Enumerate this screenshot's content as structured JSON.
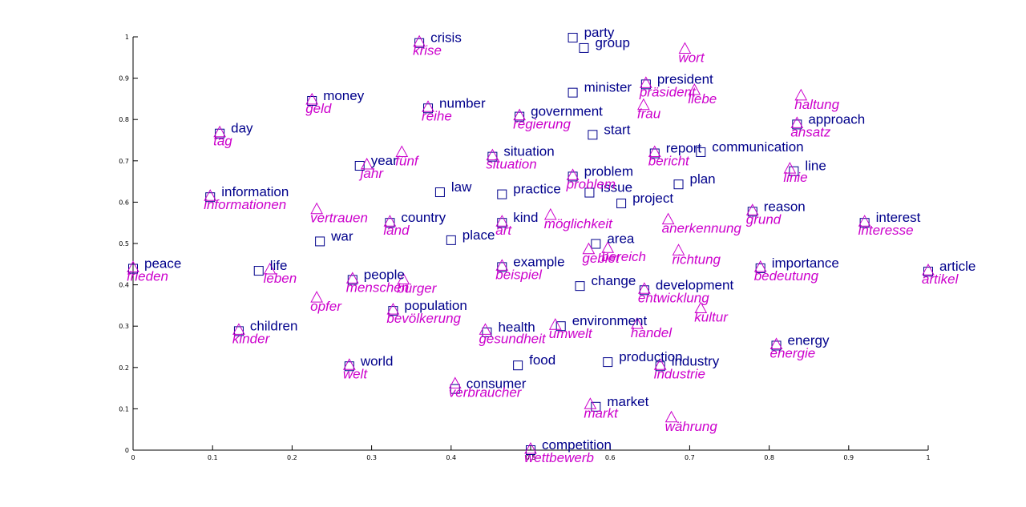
{
  "chart_data": {
    "type": "scatter",
    "xlim": [
      0,
      1
    ],
    "ylim": [
      0,
      1
    ],
    "x_ticks": [
      "0",
      "0.1",
      "0.2",
      "0.3",
      "0.4",
      "0.5",
      "0.6",
      "0.7",
      "0.8",
      "0.9",
      "1"
    ],
    "y_ticks": [
      "0",
      "0.1",
      "0.2",
      "0.3",
      "0.4",
      "0.5",
      "0.6",
      "0.7",
      "0.8",
      "0.9",
      "1"
    ],
    "grid": false,
    "colors": {
      "english": "#00008b",
      "german": "#cc00cc",
      "axis": "#000000"
    },
    "series": [
      {
        "marker": "square",
        "points": [
          {
            "label": "party",
            "x": 0.553,
            "y": 0.998
          },
          {
            "label": "group",
            "x": 0.567,
            "y": 0.973
          },
          {
            "label": "crisis",
            "x": 0.36,
            "y": 0.985
          },
          {
            "label": "minister",
            "x": 0.553,
            "y": 0.865
          },
          {
            "label": "president",
            "x": 0.645,
            "y": 0.885
          },
          {
            "label": "money",
            "x": 0.225,
            "y": 0.845
          },
          {
            "label": "number",
            "x": 0.371,
            "y": 0.827
          },
          {
            "label": "government",
            "x": 0.486,
            "y": 0.807
          },
          {
            "label": "approach",
            "x": 0.835,
            "y": 0.788
          },
          {
            "label": "start",
            "x": 0.578,
            "y": 0.763
          },
          {
            "label": "day",
            "x": 0.109,
            "y": 0.766
          },
          {
            "label": "report",
            "x": 0.656,
            "y": 0.718
          },
          {
            "label": "communication",
            "x": 0.714,
            "y": 0.721
          },
          {
            "label": "situation",
            "x": 0.452,
            "y": 0.71
          },
          {
            "label": "year",
            "x": 0.285,
            "y": 0.688
          },
          {
            "label": "line",
            "x": 0.831,
            "y": 0.675
          },
          {
            "label": "problem",
            "x": 0.553,
            "y": 0.662
          },
          {
            "label": "plan",
            "x": 0.686,
            "y": 0.643
          },
          {
            "label": "issue",
            "x": 0.574,
            "y": 0.623
          },
          {
            "label": "law",
            "x": 0.386,
            "y": 0.624
          },
          {
            "label": "practice",
            "x": 0.464,
            "y": 0.619
          },
          {
            "label": "information",
            "x": 0.097,
            "y": 0.612
          },
          {
            "label": "project",
            "x": 0.614,
            "y": 0.597
          },
          {
            "label": "reason",
            "x": 0.779,
            "y": 0.577
          },
          {
            "label": "country",
            "x": 0.323,
            "y": 0.55
          },
          {
            "label": "kind",
            "x": 0.464,
            "y": 0.55
          },
          {
            "label": "interest",
            "x": 0.92,
            "y": 0.55
          },
          {
            "label": "place",
            "x": 0.4,
            "y": 0.508
          },
          {
            "label": "war",
            "x": 0.235,
            "y": 0.505
          },
          {
            "label": "area",
            "x": 0.582,
            "y": 0.499
          },
          {
            "label": "example",
            "x": 0.464,
            "y": 0.443
          },
          {
            "label": "importance",
            "x": 0.789,
            "y": 0.44
          },
          {
            "label": "peace",
            "x": 0.0,
            "y": 0.439
          },
          {
            "label": "life",
            "x": 0.158,
            "y": 0.434
          },
          {
            "label": "article",
            "x": 1.0,
            "y": 0.432
          },
          {
            "label": "people",
            "x": 0.276,
            "y": 0.412
          },
          {
            "label": "change",
            "x": 0.562,
            "y": 0.397
          },
          {
            "label": "development",
            "x": 0.643,
            "y": 0.387
          },
          {
            "label": "population",
            "x": 0.327,
            "y": 0.337
          },
          {
            "label": "environment",
            "x": 0.538,
            "y": 0.3
          },
          {
            "label": "children",
            "x": 0.133,
            "y": 0.288
          },
          {
            "label": "health",
            "x": 0.445,
            "y": 0.285
          },
          {
            "label": "energy",
            "x": 0.809,
            "y": 0.253
          },
          {
            "label": "food",
            "x": 0.484,
            "y": 0.205
          },
          {
            "label": "production",
            "x": 0.597,
            "y": 0.213
          },
          {
            "label": "industry",
            "x": 0.663,
            "y": 0.203
          },
          {
            "label": "world",
            "x": 0.272,
            "y": 0.203
          },
          {
            "label": "consumer",
            "x": 0.405,
            "y": 0.148
          },
          {
            "label": "market",
            "x": 0.582,
            "y": 0.105
          },
          {
            "label": "competition",
            "x": 0.5,
            "y": 0.0
          }
        ]
      },
      {
        "marker": "triangle",
        "points": [
          {
            "label": "krise",
            "x": 0.36,
            "y": 0.985
          },
          {
            "label": "wort",
            "x": 0.694,
            "y": 0.968
          },
          {
            "label": "präsident",
            "x": 0.645,
            "y": 0.885
          },
          {
            "label": "liebe",
            "x": 0.706,
            "y": 0.868
          },
          {
            "label": "haltung",
            "x": 0.84,
            "y": 0.855
          },
          {
            "label": "geld",
            "x": 0.225,
            "y": 0.845
          },
          {
            "label": "reihe",
            "x": 0.371,
            "y": 0.827
          },
          {
            "label": "frau",
            "x": 0.642,
            "y": 0.832
          },
          {
            "label": "regierung",
            "x": 0.486,
            "y": 0.807
          },
          {
            "label": "ansatz",
            "x": 0.835,
            "y": 0.788
          },
          {
            "label": "tag",
            "x": 0.109,
            "y": 0.766
          },
          {
            "label": "bericht",
            "x": 0.656,
            "y": 0.718
          },
          {
            "label": "fünf",
            "x": 0.338,
            "y": 0.718
          },
          {
            "label": "situation",
            "x": 0.452,
            "y": 0.71
          },
          {
            "label": "jahr",
            "x": 0.294,
            "y": 0.688
          },
          {
            "label": "linie",
            "x": 0.826,
            "y": 0.678
          },
          {
            "label": "problem",
            "x": 0.553,
            "y": 0.662
          },
          {
            "label": "informationen",
            "x": 0.097,
            "y": 0.612
          },
          {
            "label": "vertrauen",
            "x": 0.231,
            "y": 0.58
          },
          {
            "label": "möglichkeit",
            "x": 0.525,
            "y": 0.566
          },
          {
            "label": "anerkennung",
            "x": 0.673,
            "y": 0.555
          },
          {
            "label": "grund",
            "x": 0.779,
            "y": 0.577
          },
          {
            "label": "land",
            "x": 0.323,
            "y": 0.55
          },
          {
            "label": "art",
            "x": 0.464,
            "y": 0.55
          },
          {
            "label": "interesse",
            "x": 0.92,
            "y": 0.55
          },
          {
            "label": "gebiet",
            "x": 0.573,
            "y": 0.483
          },
          {
            "label": "bereich",
            "x": 0.597,
            "y": 0.486
          },
          {
            "label": "richtung",
            "x": 0.686,
            "y": 0.48
          },
          {
            "label": "beispiel",
            "x": 0.464,
            "y": 0.443
          },
          {
            "label": "bedeutung",
            "x": 0.789,
            "y": 0.44
          },
          {
            "label": "frieden",
            "x": 0.0,
            "y": 0.439
          },
          {
            "label": "leben",
            "x": 0.172,
            "y": 0.434
          },
          {
            "label": "artikel",
            "x": 1.0,
            "y": 0.432
          },
          {
            "label": "menschen",
            "x": 0.276,
            "y": 0.412
          },
          {
            "label": "bürger",
            "x": 0.34,
            "y": 0.41
          },
          {
            "label": "entwicklung",
            "x": 0.643,
            "y": 0.387
          },
          {
            "label": "opfer",
            "x": 0.231,
            "y": 0.366
          },
          {
            "label": "kultur",
            "x": 0.714,
            "y": 0.34
          },
          {
            "label": "bevölkerung",
            "x": 0.327,
            "y": 0.337
          },
          {
            "label": "umwelt",
            "x": 0.531,
            "y": 0.3
          },
          {
            "label": "handel",
            "x": 0.634,
            "y": 0.302
          },
          {
            "label": "kinder",
            "x": 0.133,
            "y": 0.288
          },
          {
            "label": "gesundheit",
            "x": 0.443,
            "y": 0.288
          },
          {
            "label": "energie",
            "x": 0.809,
            "y": 0.253
          },
          {
            "label": "industrie",
            "x": 0.663,
            "y": 0.203
          },
          {
            "label": "welt",
            "x": 0.272,
            "y": 0.203
          },
          {
            "label": "verbraucher",
            "x": 0.405,
            "y": 0.158
          },
          {
            "label": "markt",
            "x": 0.575,
            "y": 0.108
          },
          {
            "label": "währung",
            "x": 0.677,
            "y": 0.076
          },
          {
            "label": "wettbewerb",
            "x": 0.5,
            "y": 0.0
          }
        ]
      }
    ]
  }
}
